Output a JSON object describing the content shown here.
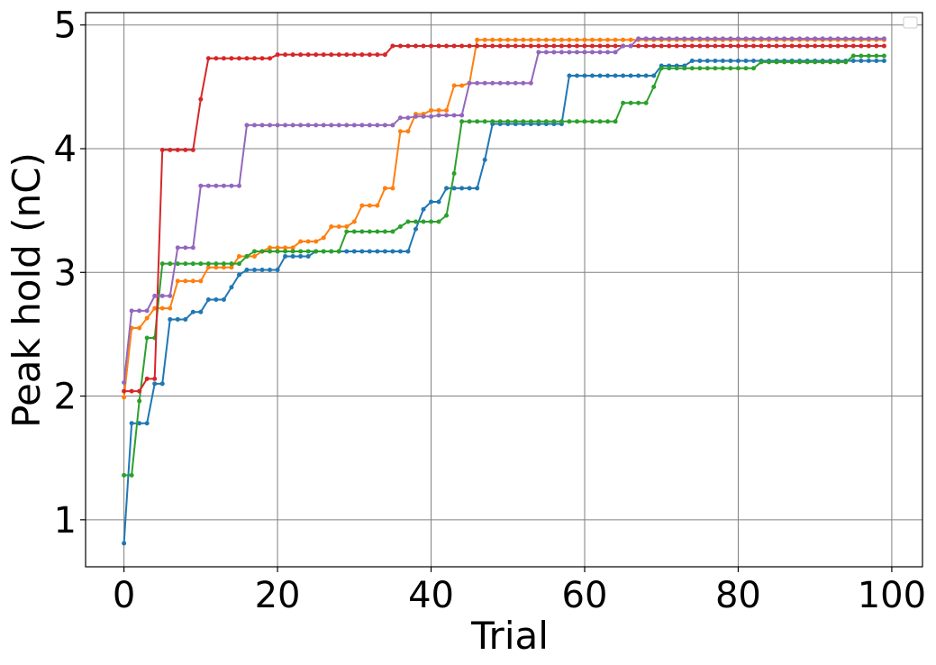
{
  "chart_data": {
    "type": "line",
    "title": "",
    "xlabel": "Trial",
    "ylabel": "Peak hold (nC)",
    "xlim": [
      -5,
      104
    ],
    "ylim": [
      0.62,
      5.1
    ],
    "xticks": [
      0,
      20,
      40,
      60,
      80,
      100
    ],
    "yticks": [
      1,
      2,
      3,
      4,
      5
    ],
    "grid": true,
    "legend": "top-right (empty)",
    "markers": true,
    "series": [
      {
        "color": "#1f77b4",
        "steps": [
          [
            0,
            0.81
          ],
          [
            1,
            1.78
          ],
          [
            4,
            2.1
          ],
          [
            6,
            2.62
          ],
          [
            9,
            2.68
          ],
          [
            11,
            2.78
          ],
          [
            14,
            2.88
          ],
          [
            15,
            2.98
          ],
          [
            16,
            3.02
          ],
          [
            21,
            3.13
          ],
          [
            25,
            3.17
          ],
          [
            38,
            3.35
          ],
          [
            39,
            3.51
          ],
          [
            40,
            3.57
          ],
          [
            42,
            3.68
          ],
          [
            47,
            3.91
          ],
          [
            48,
            4.2
          ],
          [
            58,
            4.59
          ],
          [
            70,
            4.67
          ],
          [
            74,
            4.71
          ]
        ]
      },
      {
        "color": "#ff7f0e",
        "steps": [
          [
            0,
            1.99
          ],
          [
            1,
            2.55
          ],
          [
            3,
            2.63
          ],
          [
            4,
            2.71
          ],
          [
            7,
            2.93
          ],
          [
            11,
            3.04
          ],
          [
            15,
            3.13
          ],
          [
            18,
            3.17
          ],
          [
            19,
            3.2
          ],
          [
            23,
            3.25
          ],
          [
            26,
            3.28
          ],
          [
            27,
            3.37
          ],
          [
            30,
            3.41
          ],
          [
            31,
            3.54
          ],
          [
            34,
            3.68
          ],
          [
            36,
            4.14
          ],
          [
            38,
            4.28
          ],
          [
            40,
            4.31
          ],
          [
            43,
            4.51
          ],
          [
            45,
            4.53
          ],
          [
            46,
            4.88
          ]
        ]
      },
      {
        "color": "#2ca02c",
        "steps": [
          [
            0,
            1.36
          ],
          [
            2,
            1.96
          ],
          [
            3,
            2.47
          ],
          [
            5,
            3.07
          ],
          [
            16,
            3.13
          ],
          [
            17,
            3.17
          ],
          [
            29,
            3.33
          ],
          [
            36,
            3.37
          ],
          [
            37,
            3.41
          ],
          [
            42,
            3.46
          ],
          [
            43,
            3.8
          ],
          [
            44,
            4.22
          ],
          [
            65,
            4.37
          ],
          [
            69,
            4.5
          ],
          [
            70,
            4.65
          ],
          [
            83,
            4.7
          ],
          [
            95,
            4.75
          ]
        ]
      },
      {
        "color": "#d62728",
        "steps": [
          [
            0,
            2.04
          ],
          [
            3,
            2.14
          ],
          [
            5,
            3.99
          ],
          [
            10,
            4.4
          ],
          [
            11,
            4.73
          ],
          [
            20,
            4.76
          ],
          [
            35,
            4.83
          ]
        ]
      },
      {
        "color": "#9467bd",
        "steps": [
          [
            0,
            2.11
          ],
          [
            1,
            2.69
          ],
          [
            4,
            2.81
          ],
          [
            7,
            3.2
          ],
          [
            10,
            3.7
          ],
          [
            16,
            4.19
          ],
          [
            36,
            4.25
          ],
          [
            38,
            4.26
          ],
          [
            41,
            4.27
          ],
          [
            45,
            4.53
          ],
          [
            54,
            4.78
          ],
          [
            65,
            4.83
          ],
          [
            67,
            4.89
          ]
        ]
      }
    ]
  }
}
